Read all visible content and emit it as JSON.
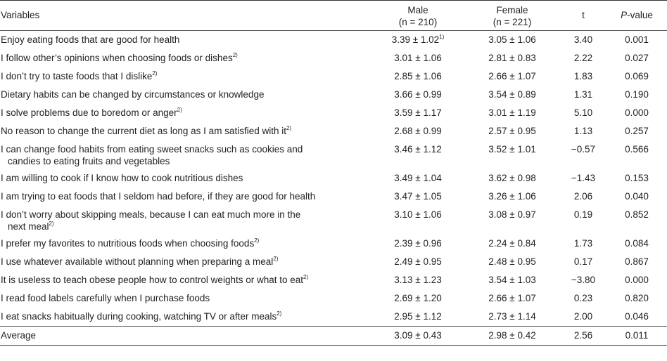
{
  "header": {
    "variables": "Variables",
    "male": "Male",
    "male_n": "(n = 210)",
    "female": "Female",
    "female_n": "(n = 221)",
    "t": "t",
    "p_italic": "P",
    "p_rest": "-value"
  },
  "rows": [
    {
      "var": "Enjoy eating foods that are good for health",
      "var_sup": "",
      "var2": "",
      "var2_sup": "",
      "male": "3.39 ± 1.02",
      "male_sup": "1)",
      "female": "3.05 ± 1.06",
      "t": "3.40",
      "p": "0.001"
    },
    {
      "var": "I follow other’s opinions when choosing foods or dishes",
      "var_sup": "2)",
      "var2": "",
      "var2_sup": "",
      "male": "3.01 ± 1.06",
      "male_sup": "",
      "female": "2.81 ± 0.83",
      "t": "2.22",
      "p": "0.027"
    },
    {
      "var": "I don’t try to taste foods that I dislike",
      "var_sup": "2)",
      "var2": "",
      "var2_sup": "",
      "male": "2.85 ± 1.06",
      "male_sup": "",
      "female": "2.66 ± 1.07",
      "t": "1.83",
      "p": "0.069"
    },
    {
      "var": "Dietary habits can be changed by circumstances or knowledge",
      "var_sup": "",
      "var2": "",
      "var2_sup": "",
      "male": "3.66 ± 0.99",
      "male_sup": "",
      "female": "3.54 ± 0.89",
      "t": "1.31",
      "p": "0.190"
    },
    {
      "var": "I solve problems due to boredom or anger",
      "var_sup": "2)",
      "var2": "",
      "var2_sup": "",
      "male": "3.59 ± 1.17",
      "male_sup": "",
      "female": "3.01 ± 1.19",
      "t": "5.10",
      "p": "0.000"
    },
    {
      "var": "No reason to change the current diet as long as I am satisfied with it",
      "var_sup": "2)",
      "var2": "",
      "var2_sup": "",
      "male": "2.68 ± 0.99",
      "male_sup": "",
      "female": "2.57 ± 0.95",
      "t": "1.13",
      "p": "0.257"
    },
    {
      "var": "I can change food habits from eating sweet snacks such as cookies and",
      "var_sup": "",
      "var2": "candies to eating fruits and vegetables",
      "var2_sup": "",
      "male": "3.46 ± 1.12",
      "male_sup": "",
      "female": "3.52 ± 1.01",
      "t": "−0.57",
      "p": "0.566"
    },
    {
      "var": "I am willing to cook if I know how to cook nutritious dishes",
      "var_sup": "",
      "var2": "",
      "var2_sup": "",
      "male": "3.49 ± 1.04",
      "male_sup": "",
      "female": "3.62 ± 0.98",
      "t": "−1.43",
      "p": "0.153"
    },
    {
      "var": "I am trying to eat foods that I seldom had before, if they are good for health",
      "var_sup": "",
      "var2": "",
      "var2_sup": "",
      "male": "3.47 ± 1.05",
      "male_sup": "",
      "female": "3.26 ± 1.06",
      "t": "2.06",
      "p": "0.040"
    },
    {
      "var": "I don’t worry about skipping meals, because I can eat much more in the",
      "var_sup": "",
      "var2": "next meal",
      "var2_sup": "2)",
      "male": "3.10 ± 1.06",
      "male_sup": "",
      "female": "3.08 ± 0.97",
      "t": "0.19",
      "p": "0.852"
    },
    {
      "var": "I prefer my favorites to nutritious foods when choosing foods",
      "var_sup": "2)",
      "var2": "",
      "var2_sup": "",
      "male": "2.39 ± 0.96",
      "male_sup": "",
      "female": "2.24 ± 0.84",
      "t": "1.73",
      "p": "0.084"
    },
    {
      "var": "I use whatever available without planning when preparing a meal",
      "var_sup": "2)",
      "var2": "",
      "var2_sup": "",
      "male": "2.49 ± 0.95",
      "male_sup": "",
      "female": "2.48 ± 0.95",
      "t": "0.17",
      "p": "0.867"
    },
    {
      "var": "It is useless to teach obese people how to control weights or what to eat",
      "var_sup": "2)",
      "var2": "",
      "var2_sup": "",
      "male": "3.13 ± 1.23",
      "male_sup": "",
      "female": "3.54 ± 1.03",
      "t": "−3.80",
      "p": "0.000"
    },
    {
      "var": "I read food labels carefully when I purchase foods",
      "var_sup": "",
      "var2": "",
      "var2_sup": "",
      "male": "2.69 ± 1.20",
      "male_sup": "",
      "female": "2.66 ± 1.07",
      "t": "0.23",
      "p": "0.820"
    },
    {
      "var": "I eat snacks habitually during cooking, watching TV or after meals",
      "var_sup": "2)",
      "var2": "",
      "var2_sup": "",
      "male": "2.95 ± 1.12",
      "male_sup": "",
      "female": "2.73 ± 1.14",
      "t": "2.00",
      "p": "0.046"
    }
  ],
  "average": {
    "label": "Average",
    "male": "3.09 ± 0.43",
    "female": "2.98 ± 0.42",
    "t": "2.56",
    "p": "0.011"
  }
}
